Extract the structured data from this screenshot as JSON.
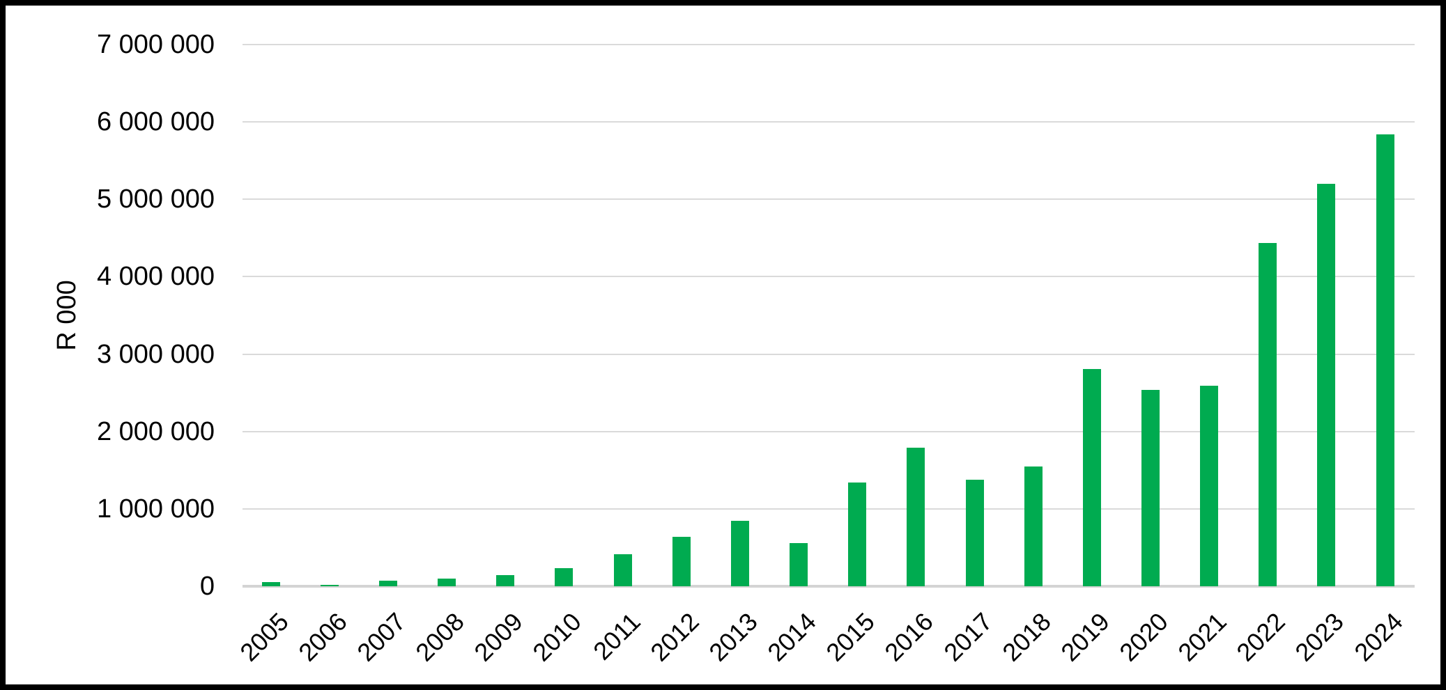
{
  "chart_data": {
    "type": "bar",
    "title": "",
    "xlabel": "",
    "ylabel": "R 000",
    "categories": [
      "2005",
      "2006",
      "2007",
      "2008",
      "2009",
      "2010",
      "2011",
      "2012",
      "2013",
      "2014",
      "2015",
      "2016",
      "2017",
      "2018",
      "2019",
      "2020",
      "2021",
      "2022",
      "2023",
      "2024"
    ],
    "values": [
      55000,
      20000,
      75000,
      95000,
      145000,
      230000,
      415000,
      640000,
      845000,
      555000,
      1340000,
      1790000,
      1380000,
      1550000,
      2810000,
      2540000,
      2590000,
      4440000,
      5200000,
      5840000
    ],
    "series_name": "R 000",
    "ylim": [
      0,
      7000000
    ],
    "ytick_interval": 1000000,
    "ytick_labels_bottom_to_top": [
      "0",
      "1 000 000",
      "2 000 000",
      "3 000 000",
      "4 000 000",
      "5 000 000",
      "6 000 000",
      "7 000 000"
    ],
    "grid": true,
    "legend_position": "none",
    "bar_color": "#00AB50",
    "gridline_color": "#DADADA",
    "text_color": "#000000",
    "background_color": "#FFFFFF",
    "border_color": "#000000"
  }
}
